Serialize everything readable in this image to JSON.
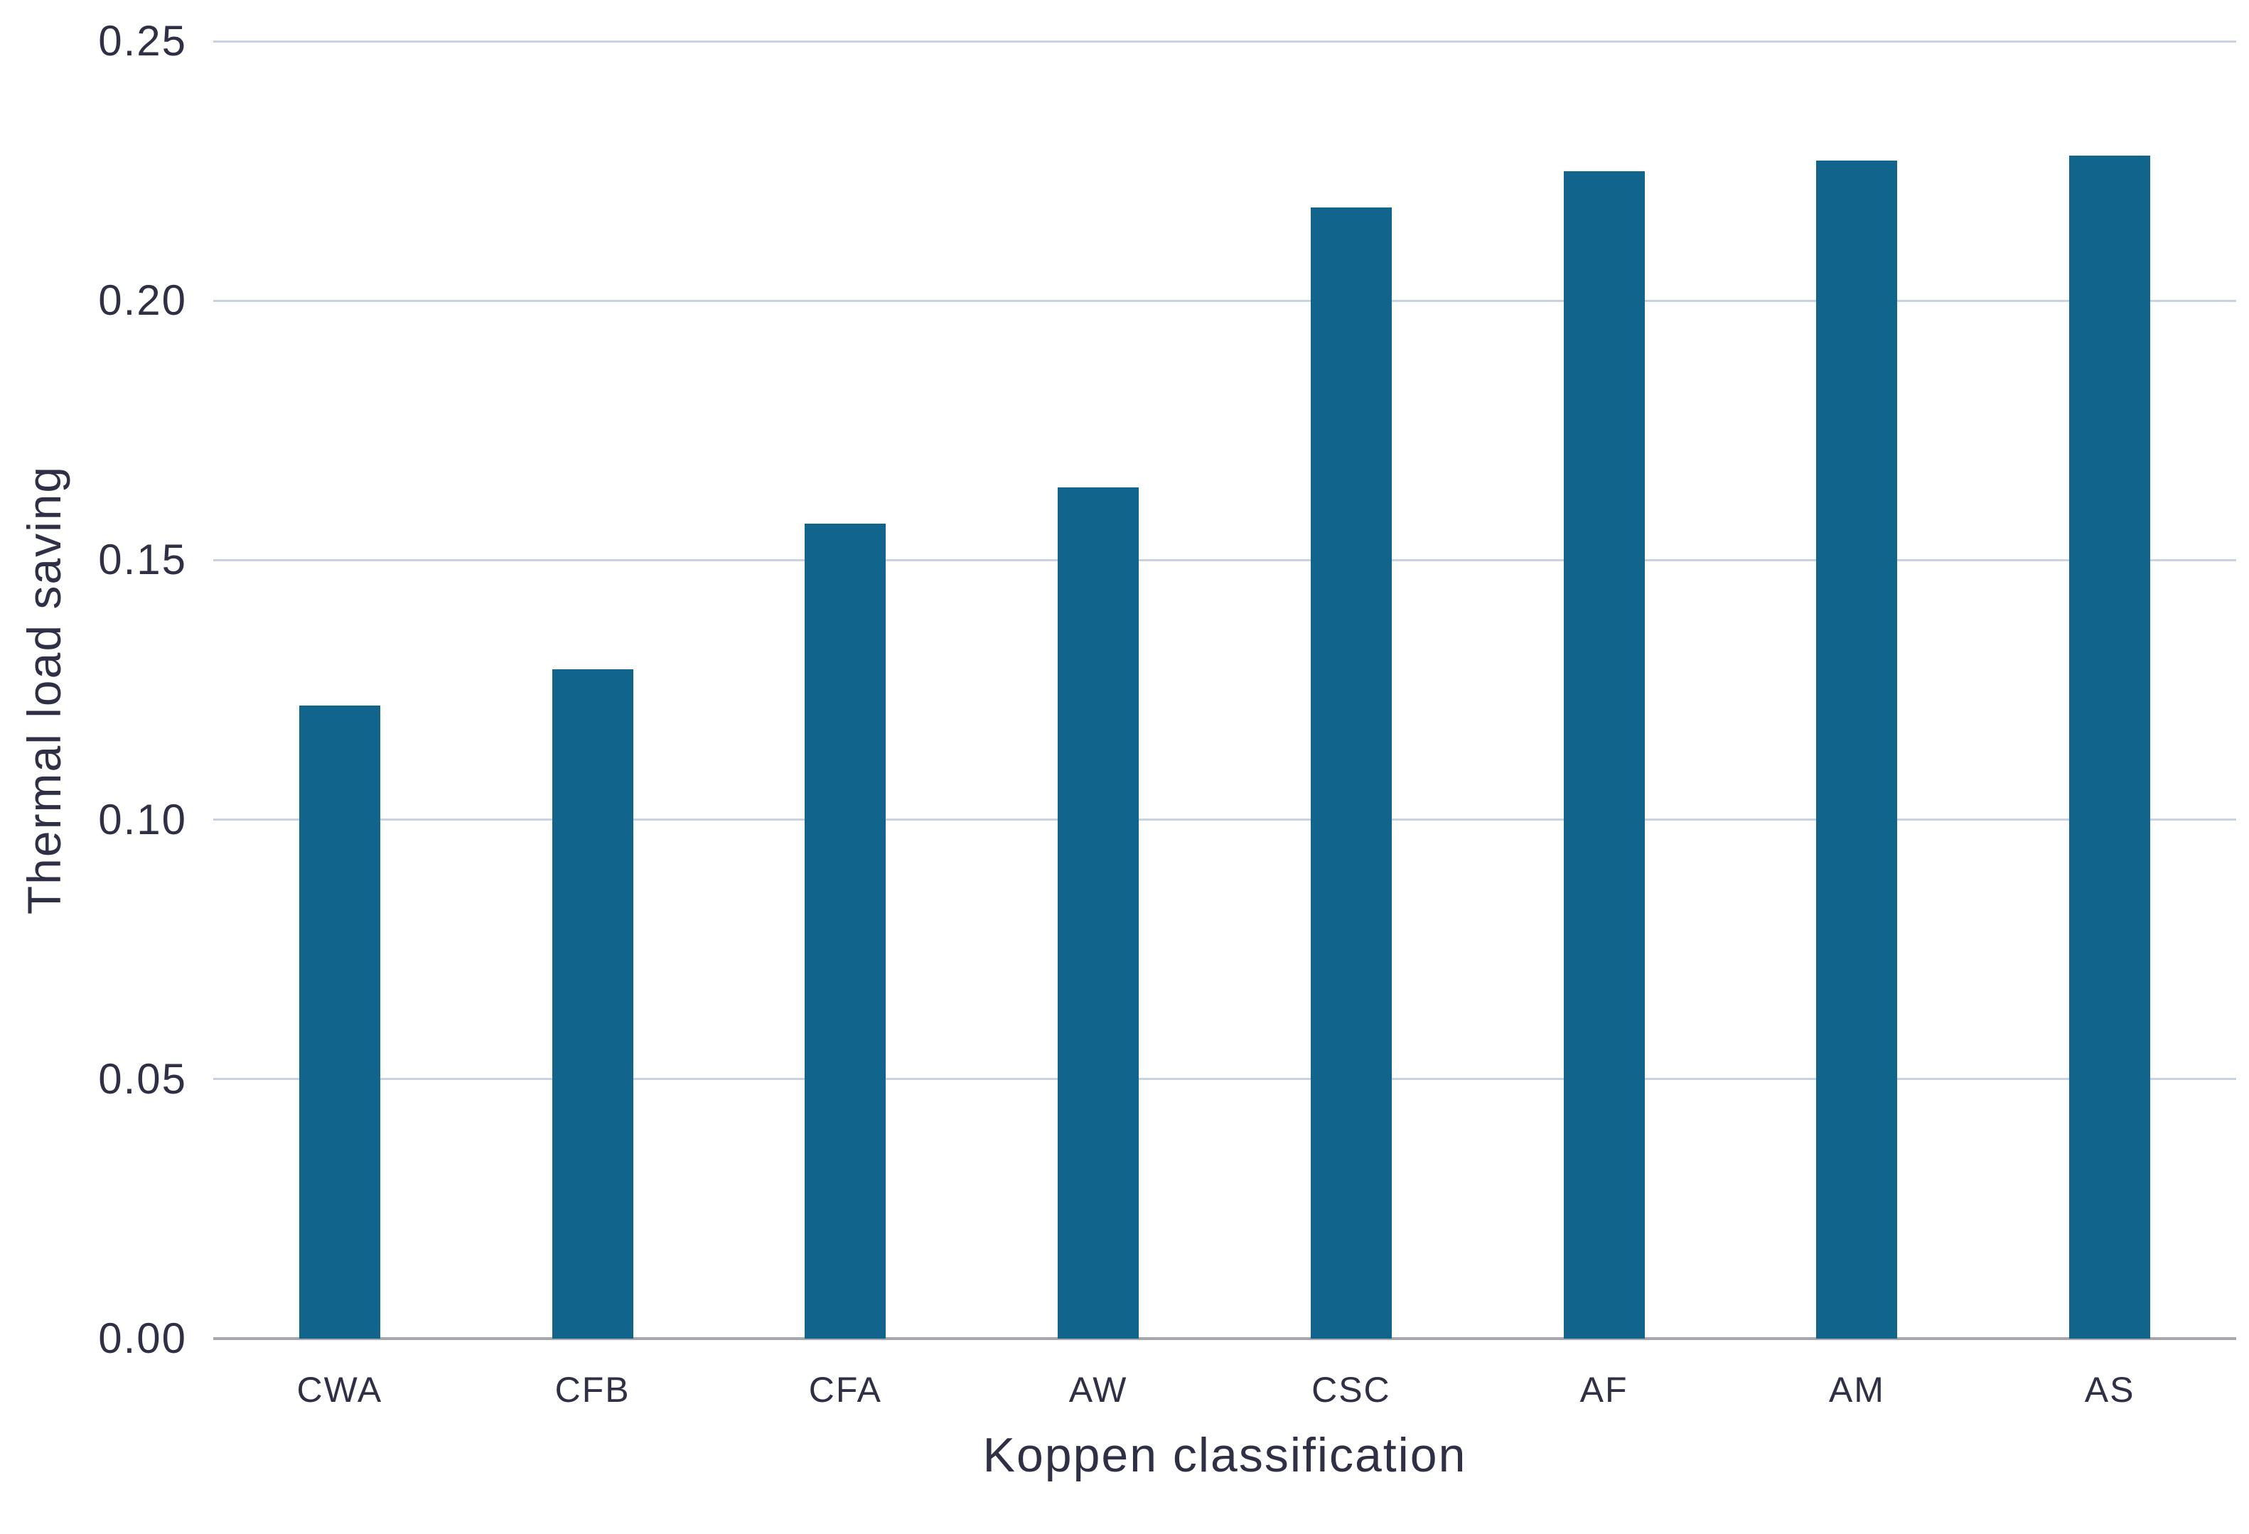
{
  "chart_data": {
    "type": "bar",
    "title": "",
    "xlabel": "Koppen classification",
    "ylabel": "Thermal load saving",
    "categories": [
      "CWA",
      "CFB",
      "CFA",
      "AW",
      "CSC",
      "AF",
      "AM",
      "AS"
    ],
    "values": [
      0.122,
      0.129,
      0.157,
      0.164,
      0.218,
      0.225,
      0.227,
      0.228
    ],
    "ylim": [
      0,
      0.25
    ],
    "yticks": [
      "0.00",
      "0.05",
      "0.10",
      "0.15",
      "0.20",
      "0.25"
    ],
    "grid": "horizontal",
    "legend": "none",
    "colors": {
      "bar": "#11658d",
      "gridline": "#c9d3df",
      "axis_line": "#a6a6af",
      "text": "#2f2f45",
      "background": "#ffffff"
    }
  }
}
